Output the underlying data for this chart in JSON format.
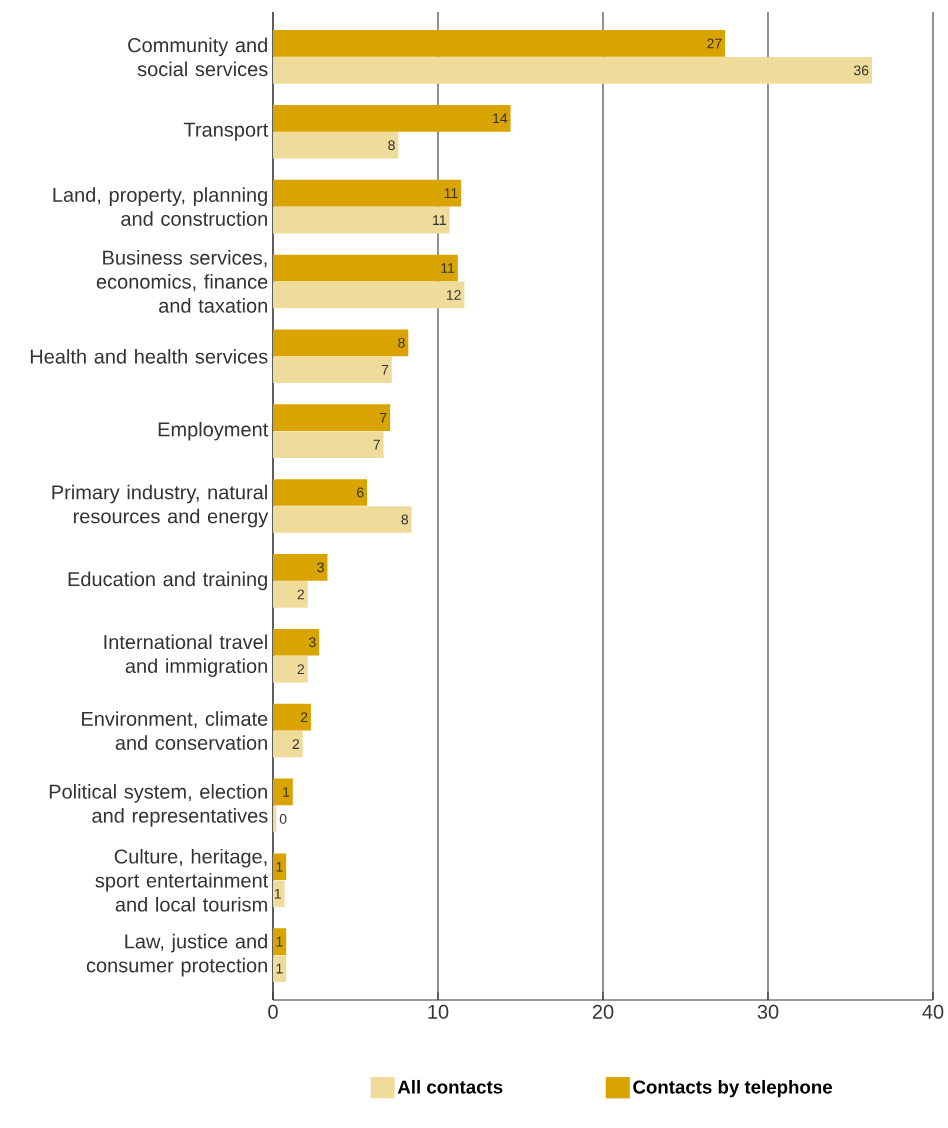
{
  "chart_data": {
    "type": "bar",
    "orientation": "horizontal",
    "categories": [
      "Community and social services",
      "Transport",
      "Land, property, planning and construction",
      "Business services, economics, finance and taxation",
      "Health and health services",
      "Employment",
      "Primary industry, natural resources and energy",
      "Education and training",
      "International travel and immigration",
      "Environment, climate and conservation",
      "Political system, election and representatives",
      "Culture, heritage, sport entertainment and local tourism",
      "Law, justice and consumer protection"
    ],
    "series": [
      {
        "name": "All contacts",
        "color": "#f0dc9a",
        "values": [
          36.3,
          7.6,
          10.7,
          11.6,
          7.2,
          6.7,
          8.4,
          2.1,
          2.1,
          1.8,
          0.2,
          0.7,
          0.8
        ],
        "value_labels": [
          "36",
          "8",
          "11",
          "12",
          "7",
          "7",
          "8",
          "2",
          "2",
          "2",
          "0",
          "1",
          "1"
        ]
      },
      {
        "name": "Contacts by telephone",
        "color": "#d9a300",
        "values": [
          27.4,
          14.4,
          11.4,
          11.2,
          8.2,
          7.1,
          5.7,
          3.3,
          2.8,
          2.3,
          1.2,
          0.8,
          0.8
        ],
        "value_labels": [
          "27",
          "14",
          "11",
          "11",
          "8",
          "7",
          "6",
          "3",
          "3",
          "2",
          "1",
          "1",
          "1"
        ]
      }
    ],
    "xlim": [
      0,
      40
    ],
    "xticks": [
      0,
      10,
      20,
      30,
      40
    ],
    "grid": "x",
    "legend": "bottom"
  }
}
